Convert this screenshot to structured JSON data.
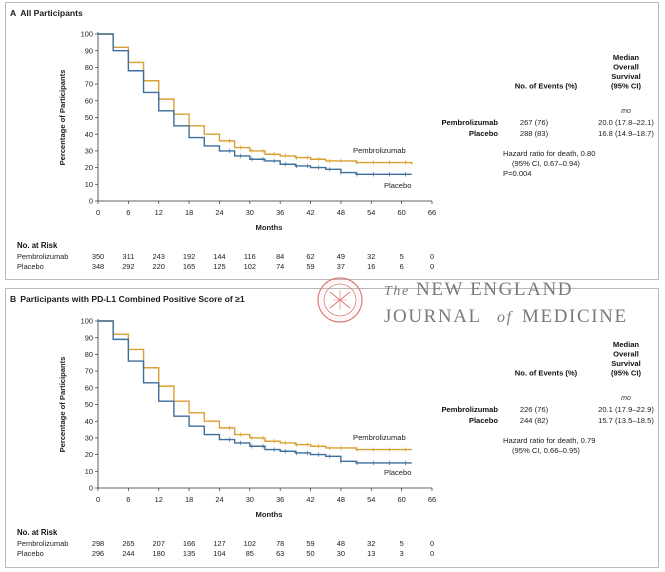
{
  "colors": {
    "pembrolizumab": "#d9a032",
    "placebo": "#3d6e9c",
    "axis": "#333333",
    "journal_text": "#7a7a7a",
    "seal": "#e07a76"
  },
  "journal": {
    "line1_article": "The",
    "line1_rest": "NEW ENGLAND",
    "line2_start": "JOURNAL",
    "line2_of": "of",
    "line2_end": "MEDICINE"
  },
  "chart_data": [
    {
      "type": "line",
      "letter": "A",
      "title": "All Participants",
      "xlabel": "Months",
      "ylabel": "Percentage of Participants",
      "xlim": [
        0,
        66
      ],
      "ylim": [
        0,
        100
      ],
      "xticks": [
        0,
        6,
        12,
        18,
        24,
        30,
        36,
        42,
        48,
        54,
        60,
        66
      ],
      "yticks": [
        0,
        10,
        20,
        30,
        40,
        50,
        60,
        70,
        80,
        90,
        100
      ],
      "series": [
        {
          "name": "Pembrolizumab",
          "x": [
            0,
            3,
            6,
            9,
            12,
            15,
            18,
            21,
            24,
            27,
            30,
            33,
            36,
            39,
            42,
            45,
            48,
            51,
            54,
            57,
            60,
            62
          ],
          "y": [
            100,
            92,
            83,
            72,
            61,
            52,
            45,
            40,
            36,
            32,
            30,
            28,
            27,
            26,
            25,
            24,
            24,
            23,
            23,
            23,
            23,
            22
          ]
        },
        {
          "name": "Placebo",
          "x": [
            0,
            3,
            6,
            9,
            12,
            15,
            18,
            21,
            24,
            27,
            30,
            33,
            36,
            39,
            42,
            45,
            48,
            51,
            54,
            57,
            60,
            62
          ],
          "y": [
            100,
            90,
            78,
            65,
            54,
            45,
            38,
            33,
            30,
            27,
            25,
            24,
            22,
            21,
            20,
            19,
            17,
            16,
            16,
            16,
            16,
            16
          ]
        }
      ],
      "stats": {
        "col_events": "No. of Events (%)",
        "col_median_lines": [
          "Median",
          "Overall",
          "Survival",
          "(95% CI)"
        ],
        "unit": "mo",
        "rows": [
          {
            "name": "Pembrolizumab",
            "events": "267 (76)",
            "median": "20.0 (17.8–22.1)"
          },
          {
            "name": "Placebo",
            "events": "288 (83)",
            "median": "16.8 (14.9–18.7)"
          }
        ],
        "hazard_lines": [
          "Hazard ratio for death, 0.80",
          "(95% CI, 0.67–0.94)",
          "P=0.004"
        ]
      },
      "risk": {
        "title": "No. at Risk",
        "rows": [
          {
            "label": "Pembrolizumab",
            "values": [
              350,
              311,
              243,
              192,
              144,
              116,
              84,
              62,
              49,
              32,
              5,
              0
            ]
          },
          {
            "label": "Placebo",
            "values": [
              348,
              292,
              220,
              165,
              125,
              102,
              74,
              59,
              37,
              16,
              6,
              0
            ]
          }
        ]
      }
    },
    {
      "type": "line",
      "letter": "B",
      "title": "Participants with PD-L1 Combined Positive Score of ≥1",
      "xlabel": "Months",
      "ylabel": "Percentage of Participants",
      "xlim": [
        0,
        66
      ],
      "ylim": [
        0,
        100
      ],
      "xticks": [
        0,
        6,
        12,
        18,
        24,
        30,
        36,
        42,
        48,
        54,
        60,
        66
      ],
      "yticks": [
        0,
        10,
        20,
        30,
        40,
        50,
        60,
        70,
        80,
        90,
        100
      ],
      "series": [
        {
          "name": "Pembrolizumab",
          "x": [
            0,
            3,
            6,
            9,
            12,
            15,
            18,
            21,
            24,
            27,
            30,
            33,
            36,
            39,
            42,
            45,
            48,
            51,
            54,
            57,
            60,
            62
          ],
          "y": [
            100,
            92,
            83,
            72,
            61,
            52,
            45,
            40,
            36,
            32,
            30,
            28,
            27,
            26,
            25,
            24,
            24,
            23,
            23,
            23,
            23,
            23
          ]
        },
        {
          "name": "Placebo",
          "x": [
            0,
            3,
            6,
            9,
            12,
            15,
            18,
            21,
            24,
            27,
            30,
            33,
            36,
            39,
            42,
            45,
            48,
            51,
            54,
            57,
            60,
            62
          ],
          "y": [
            100,
            89,
            76,
            63,
            52,
            43,
            37,
            32,
            29,
            27,
            25,
            23,
            22,
            21,
            20,
            19,
            16,
            15,
            15,
            15,
            15,
            15
          ]
        }
      ],
      "stats": {
        "col_events": "No. of Events (%)",
        "col_median_lines": [
          "Median",
          "Overall",
          "Survival",
          "(95% CI)"
        ],
        "unit": "mo",
        "rows": [
          {
            "name": "Pembrolizumab",
            "events": "226 (76)",
            "median": "20.1 (17.9–22.9)"
          },
          {
            "name": "Placebo",
            "events": "244 (82)",
            "median": "15.7 (13.5–18.5)"
          }
        ],
        "hazard_lines": [
          "Hazard ratio for death, 0.79",
          "(95% CI, 0.66–0.95)"
        ]
      },
      "risk": {
        "title": "No. at Risk",
        "rows": [
          {
            "label": "Pembrolizumab",
            "values": [
              298,
              265,
              207,
              166,
              127,
              102,
              78,
              59,
              48,
              32,
              5,
              0
            ]
          },
          {
            "label": "Placebo",
            "values": [
              296,
              244,
              180,
              135,
              104,
              85,
              63,
              50,
              30,
              13,
              3,
              0
            ]
          }
        ]
      }
    }
  ]
}
